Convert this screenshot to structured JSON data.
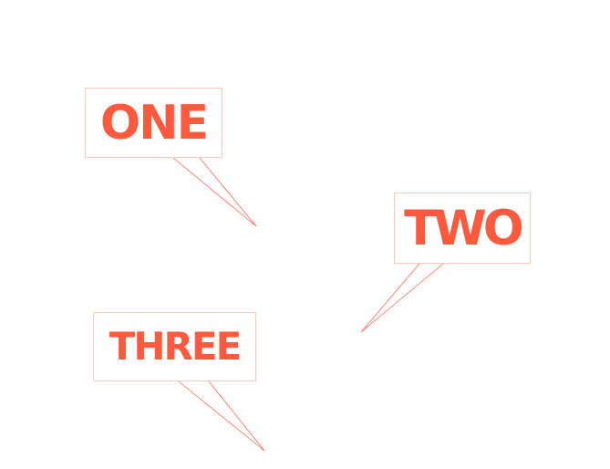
{
  "callouts": [
    {
      "label": "ONE"
    },
    {
      "label": "TWO"
    },
    {
      "label": "THREE"
    }
  ],
  "colors": {
    "label_text": "#ff5a3d",
    "box_border": "#f8cbbd",
    "pointer_line": "#ff6a50",
    "background": "#ffffff"
  }
}
